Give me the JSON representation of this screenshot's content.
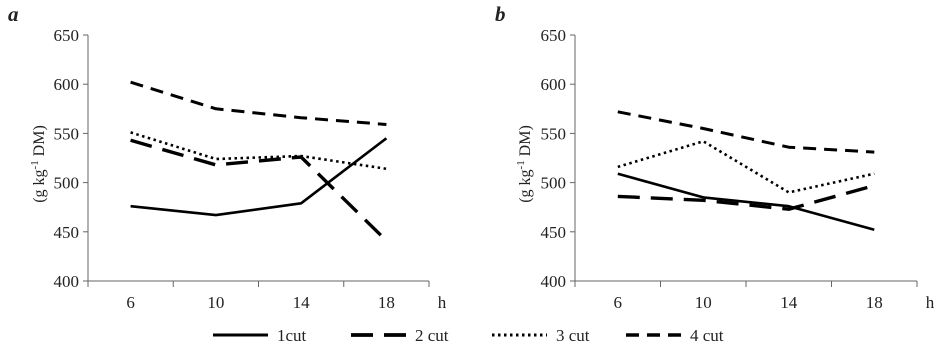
{
  "chart_data": [
    {
      "type": "line",
      "panel_label": "a",
      "title": "",
      "xlabel": "h",
      "ylabel": "(g kg-1 DM)",
      "ylabel_parts": {
        "base": "(g kg",
        "sup": "-1",
        "rest": " DM)"
      },
      "categories": [
        "6",
        "10",
        "14",
        "18"
      ],
      "ylim": [
        400,
        650
      ],
      "yticks": [
        400,
        450,
        500,
        550,
        600,
        650
      ],
      "grid": false,
      "series": [
        {
          "name": "1cut",
          "values": [
            476,
            467,
            479,
            545
          ]
        },
        {
          "name": "2 cut",
          "values": [
            543,
            518,
            526,
            441
          ]
        },
        {
          "name": "3 cut",
          "values": [
            551,
            524,
            527,
            514
          ]
        },
        {
          "name": "4 cut",
          "values": [
            602,
            575,
            566,
            559
          ]
        }
      ]
    },
    {
      "type": "line",
      "panel_label": "b",
      "title": "",
      "xlabel": "h",
      "ylabel": "(g kg-1 DM)",
      "ylabel_parts": {
        "base": "(g kg",
        "sup": "-1",
        "rest": " DM)"
      },
      "categories": [
        "6",
        "10",
        "14",
        "18"
      ],
      "ylim": [
        400,
        650
      ],
      "yticks": [
        400,
        450,
        500,
        550,
        600,
        650
      ],
      "grid": false,
      "series": [
        {
          "name": "1cut",
          "values": [
            509,
            485,
            476,
            452
          ]
        },
        {
          "name": "2 cut",
          "values": [
            486,
            482,
            473,
            497
          ]
        },
        {
          "name": "3 cut",
          "values": [
            516,
            542,
            490,
            509
          ]
        },
        {
          "name": "4 cut",
          "values": [
            572,
            555,
            536,
            531
          ]
        }
      ]
    }
  ],
  "legend": {
    "placement": "bottom",
    "items": [
      {
        "label": "1cut",
        "style": "solid"
      },
      {
        "label": "2 cut",
        "style": "long-dash"
      },
      {
        "label": "3 cut",
        "style": "dotted"
      },
      {
        "label": "4 cut",
        "style": "dash"
      }
    ]
  },
  "colors": {
    "line": "#000000",
    "axis": "#666666",
    "text": "#222222"
  }
}
